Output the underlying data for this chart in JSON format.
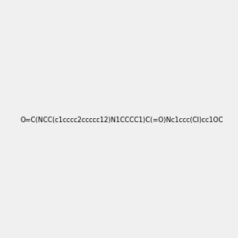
{
  "smiles": "O=C(NCC(c1cccc2ccccc12)N1CCCC1)C(=O)Nc1ccc(Cl)cc1OC",
  "image_size": 300,
  "background_color": "#f0f0f0",
  "bond_color": "#1a1a1a",
  "atom_colors": {
    "N": "#0000ff",
    "O": "#ff0000",
    "Cl": "#00aa00",
    "C": "#1a1a1a",
    "H": "#888888"
  }
}
